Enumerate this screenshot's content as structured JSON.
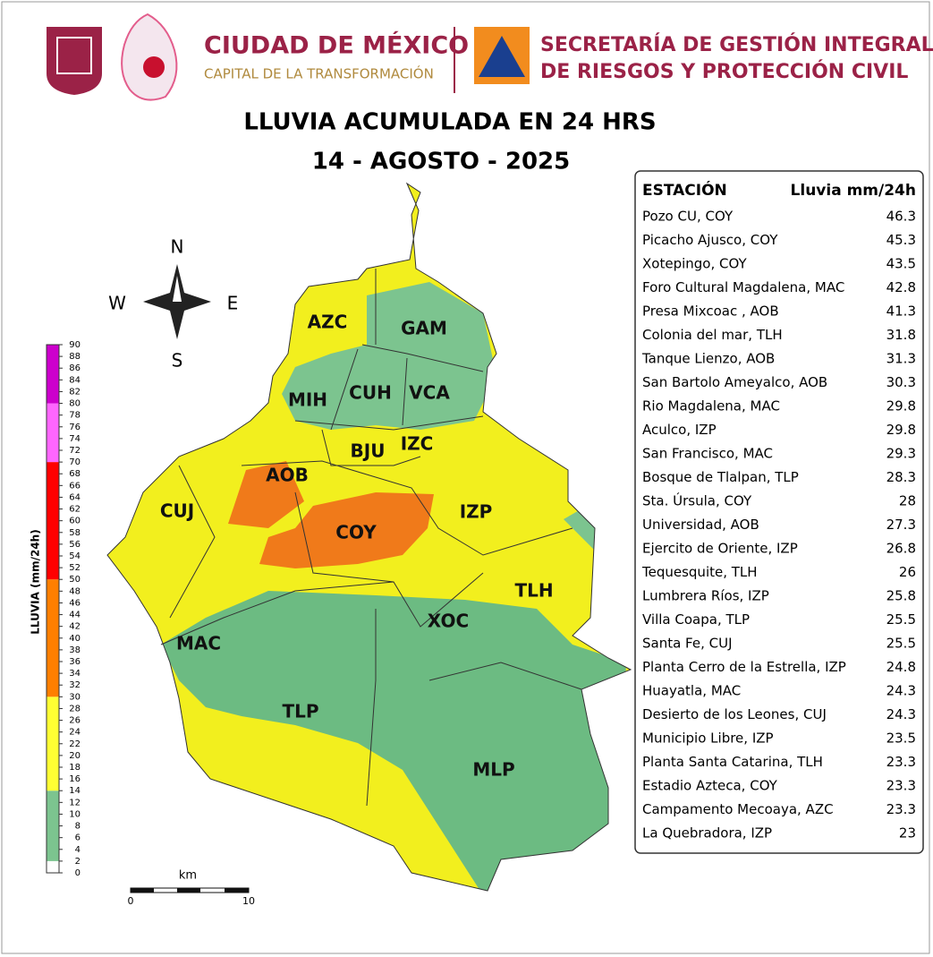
{
  "header": {
    "city": "CIUDAD DE MÉXICO",
    "city_motto": "CAPITAL DE LA TRANSFORMACIÓN",
    "agency_line1": "SECRETARÍA DE GESTIÓN INTEGRAL",
    "agency_line2": "DE RIESGOS Y PROTECCIÓN CIVIL"
  },
  "title": "LLUVIA ACUMULADA EN 24 HRS",
  "date": "14 - AGOSTO - 2025",
  "compass": {
    "n": "N",
    "s": "S",
    "e": "E",
    "w": "W"
  },
  "scale": {
    "unit": "km",
    "start": 0,
    "end": 10
  },
  "boroughs": [
    "AZC",
    "GAM",
    "MIH",
    "CUH",
    "VCA",
    "BJU",
    "IZC",
    "AOB",
    "CUJ",
    "COY",
    "IZP",
    "TLH",
    "XOC",
    "MAC",
    "TLP",
    "MLP"
  ],
  "legend": {
    "label": "LLUVIA (mm/24h)",
    "ticks": [
      0,
      2,
      4,
      6,
      8,
      10,
      12,
      14,
      16,
      18,
      20,
      22,
      24,
      26,
      28,
      30,
      32,
      34,
      36,
      38,
      40,
      42,
      44,
      46,
      48,
      50,
      52,
      54,
      56,
      58,
      60,
      62,
      64,
      66,
      68,
      70,
      72,
      74,
      76,
      78,
      80,
      82,
      84,
      86,
      88,
      90
    ],
    "bands": [
      {
        "from": 0,
        "to": 2,
        "color": "#ffffff"
      },
      {
        "from": 2,
        "to": 14,
        "color": "#7cc48f"
      },
      {
        "from": 14,
        "to": 30,
        "color": "#ffff33"
      },
      {
        "from": 30,
        "to": 50,
        "color": "#ff7f00"
      },
      {
        "from": 50,
        "to": 70,
        "color": "#ff0000"
      },
      {
        "from": 70,
        "to": 80,
        "color": "#ff66ff"
      },
      {
        "from": 80,
        "to": 90,
        "color": "#cc00cc"
      }
    ]
  },
  "table": {
    "header": [
      "ESTACIÓN",
      "Lluvia mm/24h"
    ],
    "rows": [
      [
        "Pozo CU, COY",
        46.3
      ],
      [
        "Picacho Ajusco, COY",
        45.3
      ],
      [
        "Xotepingo, COY",
        43.5
      ],
      [
        "Foro Cultural Magdalena, MAC",
        42.8
      ],
      [
        "Presa Mixcoac , AOB",
        41.3
      ],
      [
        "Colonia del mar, TLH",
        31.8
      ],
      [
        "Tanque Lienzo, AOB",
        31.3
      ],
      [
        "San Bartolo Ameyalco, AOB",
        30.3
      ],
      [
        "Rio Magdalena, MAC",
        29.8
      ],
      [
        "Aculco, IZP",
        29.8
      ],
      [
        "San Francisco, MAC",
        29.3
      ],
      [
        "Bosque de Tlalpan, TLP",
        28.3
      ],
      [
        "Sta. Úrsula, COY",
        28
      ],
      [
        "Universidad, AOB",
        27.3
      ],
      [
        "Ejercito de Oriente, IZP",
        26.8
      ],
      [
        "Tequesquite, TLH",
        26
      ],
      [
        "Lumbrera Ríos, IZP",
        25.8
      ],
      [
        "Villa Coapa, TLP",
        25.5
      ],
      [
        "Santa Fe, CUJ",
        25.5
      ],
      [
        "Planta Cerro de la Estrella, IZP",
        24.8
      ],
      [
        "Huayatla, MAC",
        24.3
      ],
      [
        "Desierto de los Leones, CUJ",
        24.3
      ],
      [
        "Municipio Libre, IZP",
        23.5
      ],
      [
        "Planta Santa Catarina, TLH",
        23.3
      ],
      [
        "Estadio Azteca, COY",
        23.3
      ],
      [
        "Campamento Mecoaya, AZC",
        23.3
      ],
      [
        "La Quebradora, IZP",
        23
      ]
    ]
  }
}
